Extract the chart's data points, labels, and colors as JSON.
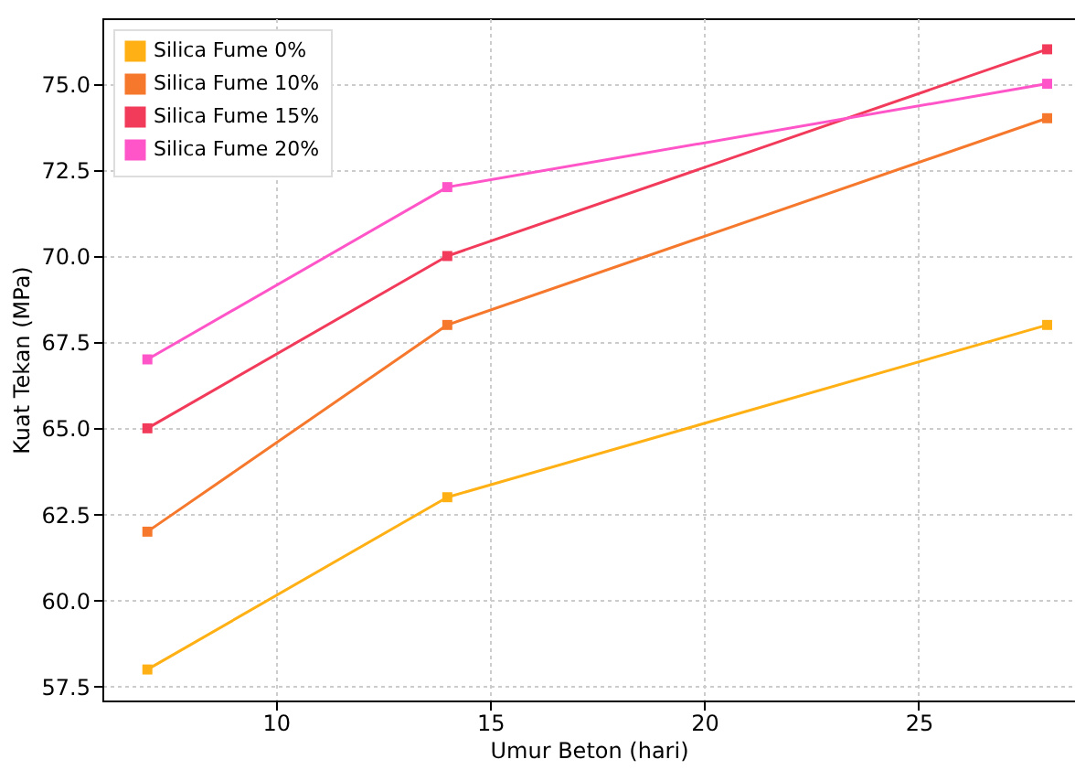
{
  "chart_data": {
    "type": "line",
    "xlabel": "Umur Beton (hari)",
    "ylabel": "Kuat Tekan (MPa)",
    "x": [
      7,
      14,
      28
    ],
    "series": [
      {
        "name": "Silica Fume 0%",
        "color": "#ffb014",
        "values": [
          58,
          63,
          68
        ]
      },
      {
        "name": "Silica Fume 10%",
        "color": "#f5782d",
        "values": [
          62,
          68,
          74
        ]
      },
      {
        "name": "Silica Fume 15%",
        "color": "#f23a5a",
        "values": [
          65,
          70,
          76
        ]
      },
      {
        "name": "Silica Fume 20%",
        "color": "#ff55c8",
        "values": [
          67,
          72,
          75
        ]
      }
    ],
    "xlim": [
      5.95,
      28.65
    ],
    "xticks": [
      10,
      15,
      20,
      25
    ],
    "ylim": [
      57.1,
      76.9
    ],
    "yticks": [
      {
        "value": 57.5,
        "label": "57.5"
      },
      {
        "value": 60,
        "label": "60.0"
      },
      {
        "value": 62.5,
        "label": "62.5"
      },
      {
        "value": 65,
        "label": "65.0"
      },
      {
        "value": 67.5,
        "label": "67.5"
      },
      {
        "value": 70,
        "label": "70.0"
      },
      {
        "value": 72.5,
        "label": "72.5"
      },
      {
        "value": 75,
        "label": "75.0"
      }
    ],
    "grid": true,
    "legend": "top left",
    "marker": "square",
    "line_style": "solid"
  }
}
